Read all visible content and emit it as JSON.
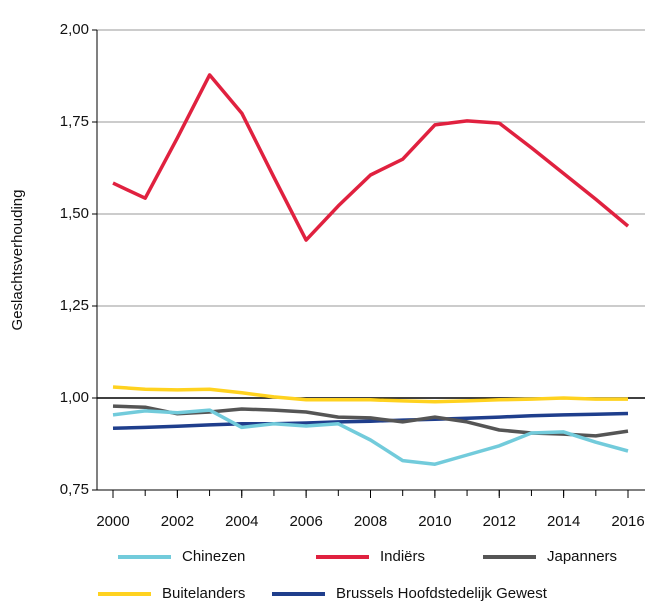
{
  "chart_data": {
    "type": "line",
    "y_label": "Geslachtsverhouding",
    "x": [
      2000,
      2001,
      2002,
      2003,
      2004,
      2005,
      2006,
      2007,
      2008,
      2009,
      2010,
      2011,
      2012,
      2013,
      2014,
      2015,
      2016
    ],
    "xlim": [
      2000,
      2016
    ],
    "xticks": [
      2000,
      2002,
      2004,
      2006,
      2008,
      2010,
      2012,
      2014,
      2016
    ],
    "ylim": [
      0.75,
      2
    ],
    "yticks": [
      {
        "value": 0.75,
        "label": "0,75"
      },
      {
        "value": 1,
        "label": "1,00"
      },
      {
        "value": 1.25,
        "label": "1,25"
      },
      {
        "value": 1.5,
        "label": "1,50"
      },
      {
        "value": 1.75,
        "label": "1,75"
      },
      {
        "value": 2,
        "label": "2,00"
      }
    ],
    "grid": true,
    "reference_line": 1,
    "legend": "bottom",
    "series": [
      {
        "name": "Chinezen",
        "color": "#72cbdb",
        "values": [
          0.954,
          0.965,
          0.96,
          0.967,
          0.92,
          0.93,
          0.924,
          0.93,
          0.886,
          0.83,
          0.82,
          0.845,
          0.87,
          0.905,
          0.908,
          0.88,
          0.856
        ]
      },
      {
        "name": "Indiërs",
        "color": "#e0213f",
        "values": [
          1.584,
          1.543,
          1.707,
          1.878,
          1.774,
          1.6,
          1.429,
          1.522,
          1.606,
          1.649,
          1.742,
          1.753,
          1.747,
          1.68,
          1.61,
          1.54,
          1.467
        ]
      },
      {
        "name": "Japanners",
        "color": "#555555",
        "values": [
          0.978,
          0.975,
          0.957,
          0.962,
          0.97,
          0.967,
          0.962,
          0.948,
          0.946,
          0.935,
          0.948,
          0.935,
          0.913,
          0.905,
          0.902,
          0.897,
          0.91
        ]
      },
      {
        "name": "Buitelanders",
        "color": "#ffd21f",
        "values": [
          1.03,
          1.024,
          1.022,
          1.024,
          1.014,
          1.003,
          0.995,
          0.995,
          0.995,
          0.992,
          0.99,
          0.992,
          0.995,
          0.997,
          1.0,
          0.997,
          0.997
        ]
      },
      {
        "name": "Brussels Hoofdstedelijk Gewest",
        "color": "#1f3e8c",
        "values": [
          0.918,
          0.92,
          0.923,
          0.927,
          0.93,
          0.93,
          0.932,
          0.935,
          0.937,
          0.94,
          0.942,
          0.945,
          0.948,
          0.952,
          0.954,
          0.956,
          0.958
        ]
      }
    ]
  }
}
